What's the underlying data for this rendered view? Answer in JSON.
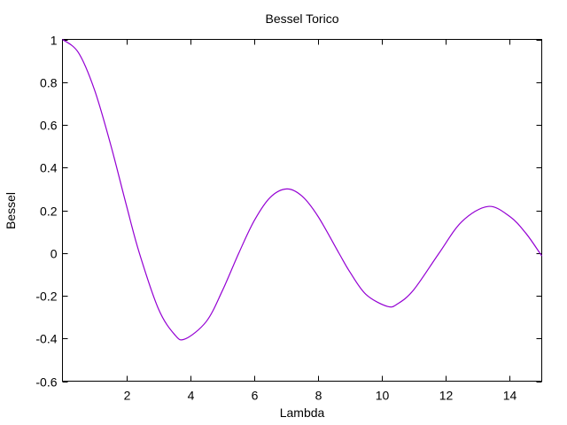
{
  "chart_data": {
    "type": "line",
    "title": "Bessel Torico",
    "xlabel": "Lambda",
    "ylabel": "Bessel",
    "xlim": [
      0,
      15
    ],
    "ylim": [
      -0.6,
      1
    ],
    "grid": false,
    "legend": "none",
    "line_color": "#9400d3",
    "x_ticks": [
      2,
      4,
      6,
      8,
      10,
      12,
      14
    ],
    "x_tick_labels": [
      "2",
      "4",
      "6",
      "8",
      "10",
      "12",
      "14"
    ],
    "y_ticks": [
      -0.6,
      -0.4,
      -0.2,
      0,
      0.2,
      0.4,
      0.6,
      0.8,
      1
    ],
    "y_tick_labels": [
      "-0.6",
      "-0.4",
      "-0.2",
      "0",
      "0.2",
      "0.4",
      "0.6",
      "0.8",
      "1"
    ],
    "series": [
      {
        "x": [
          0,
          0.5,
          1,
          1.5,
          2,
          2.4,
          3,
          3.5,
          3.83,
          4.5,
          5,
          5.52,
          6,
          6.5,
          7.02,
          7.5,
          8,
          8.65,
          9,
          9.5,
          10.17,
          10.5,
          11,
          11.79,
          12.5,
          13.32,
          14,
          14.5,
          14.93,
          15
        ],
        "y": [
          1,
          0.938,
          0.765,
          0.512,
          0.224,
          0.003,
          -0.26,
          -0.38,
          -0.403,
          -0.321,
          -0.178,
          0,
          0.151,
          0.26,
          0.3,
          0.266,
          0.171,
          0,
          -0.09,
          -0.194,
          -0.25,
          -0.237,
          -0.171,
          0,
          0.147,
          0.218,
          0.171,
          0.093,
          0.002,
          -0.014
        ]
      }
    ]
  }
}
